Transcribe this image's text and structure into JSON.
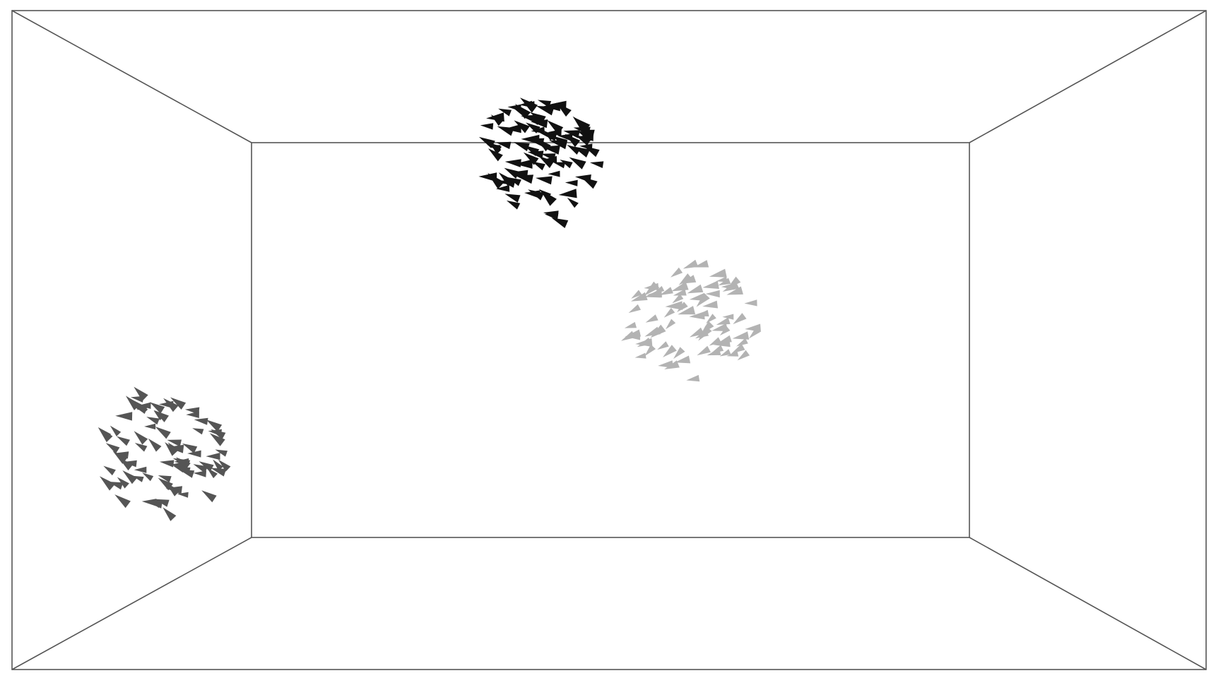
{
  "scene": {
    "background_color": "#ffffff",
    "edge_color": "#555555",
    "flocks": [
      {
        "name": "black-flock",
        "color": "#111111",
        "count": 95
      },
      {
        "name": "light-gray-flock",
        "color": "#b3b3b3",
        "count": 80
      },
      {
        "name": "dark-gray-flock",
        "color": "#555555",
        "count": 80
      }
    ]
  }
}
